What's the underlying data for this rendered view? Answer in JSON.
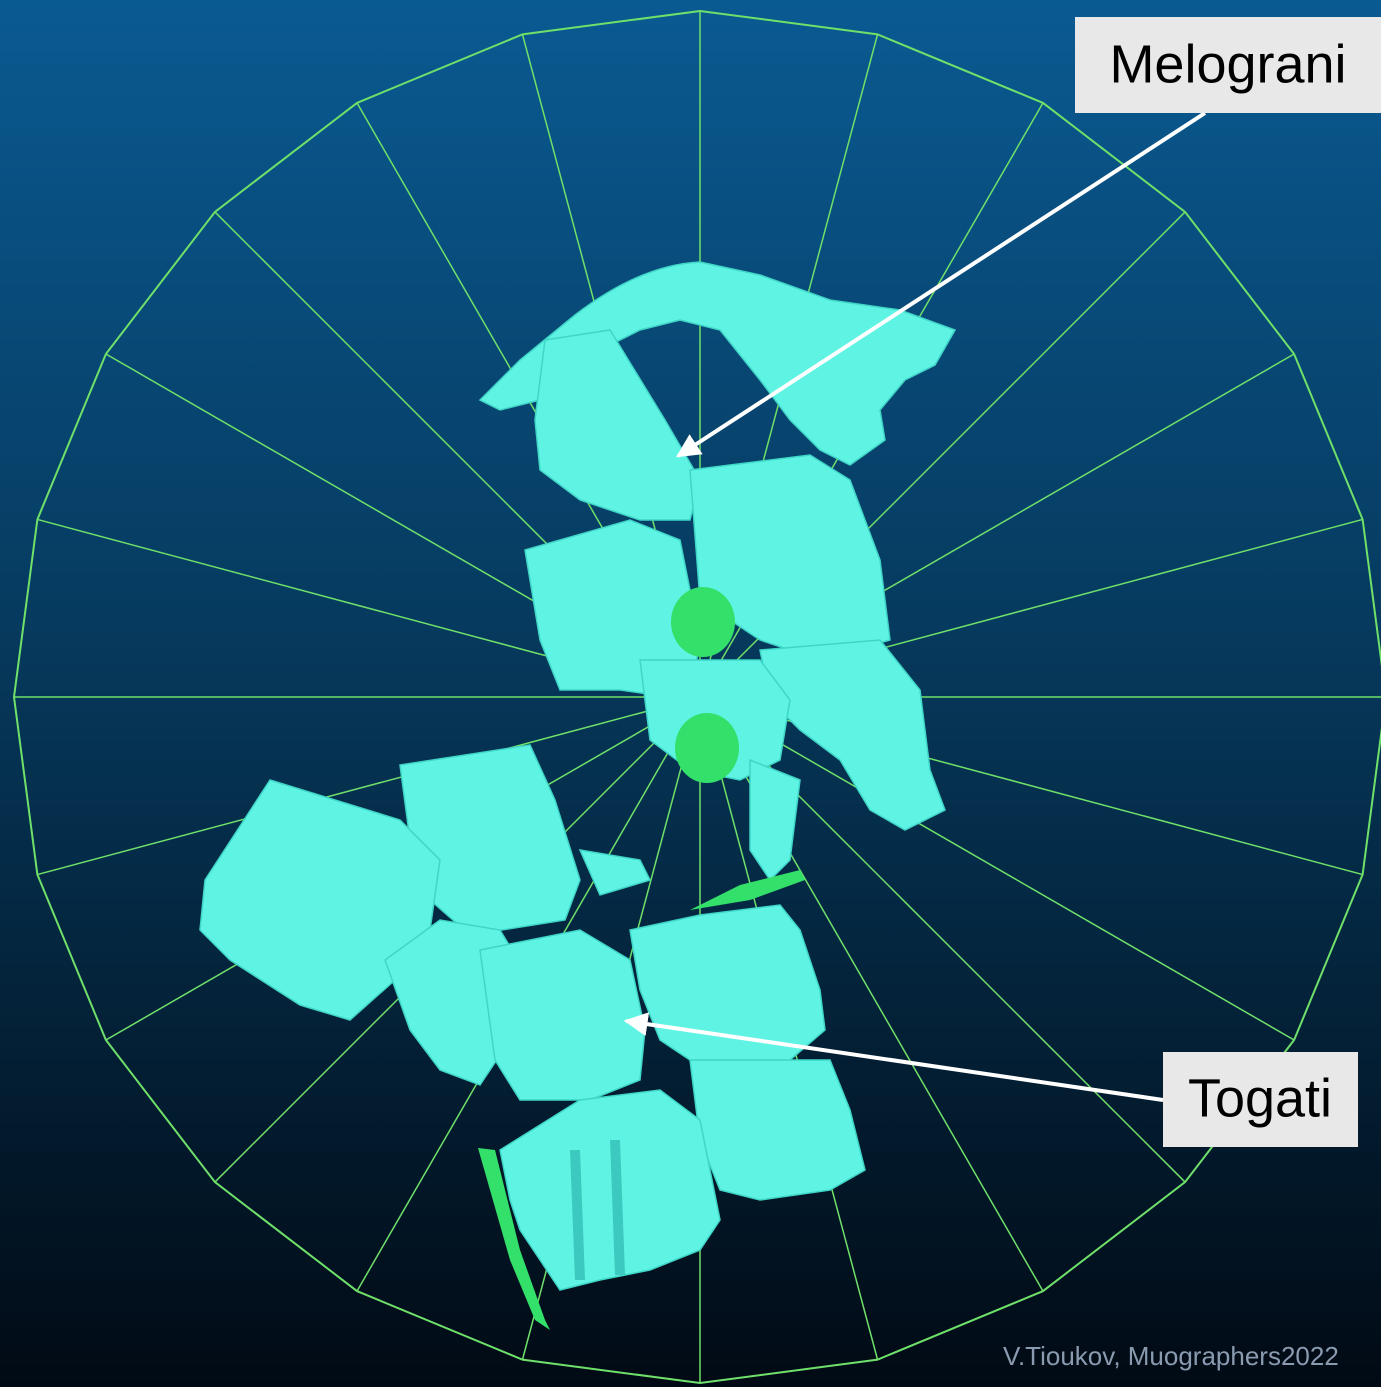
{
  "labels": [
    {
      "text": "Melograni"
    },
    {
      "text": "Togati"
    }
  ],
  "credit": "V.Tioukov, Muographers2022"
}
